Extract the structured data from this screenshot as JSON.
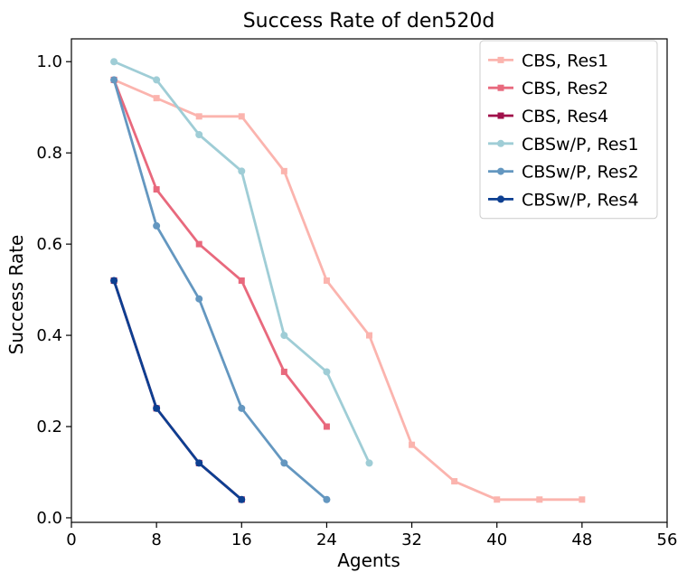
{
  "chart_data": {
    "type": "line",
    "title": "Success Rate of den520d",
    "xlabel": "Agents",
    "ylabel": "Success Rate",
    "xlim": [
      0,
      56
    ],
    "ylim": [
      -0.01,
      1.05
    ],
    "xticks": [
      0,
      8,
      16,
      24,
      32,
      40,
      48,
      56
    ],
    "xtick_labels": [
      "0",
      "8",
      "16",
      "24",
      "32",
      "40",
      "48",
      "56"
    ],
    "yticks": [
      0.0,
      0.2,
      0.4,
      0.6,
      0.8,
      1.0
    ],
    "ytick_labels": [
      "0.0",
      "0.2",
      "0.4",
      "0.6",
      "0.8",
      "1.0"
    ],
    "grid": false,
    "legend_position": "top-right",
    "series": [
      {
        "name": "CBS, Res1",
        "color": "#fbb4ae",
        "marker": "square",
        "x": [
          4,
          8,
          12,
          16,
          20,
          24,
          28,
          32,
          36,
          40,
          44,
          48
        ],
        "y": [
          0.96,
          0.92,
          0.88,
          0.88,
          0.76,
          0.52,
          0.4,
          0.16,
          0.08,
          0.04,
          0.04,
          0.04
        ]
      },
      {
        "name": "CBS, Res2",
        "color": "#e8697d",
        "marker": "square",
        "x": [
          4,
          8,
          12,
          16,
          20,
          24
        ],
        "y": [
          0.96,
          0.72,
          0.6,
          0.52,
          0.32,
          0.2
        ]
      },
      {
        "name": "CBS, Res4",
        "color": "#a0104a",
        "marker": "square",
        "x": [
          4,
          8,
          12,
          16
        ],
        "y": [
          0.52,
          0.24,
          0.12,
          0.04
        ]
      },
      {
        "name": "CBSw/P, Res1",
        "color": "#9fcdd6",
        "marker": "circle",
        "x": [
          4,
          8,
          12,
          16,
          20,
          24,
          28
        ],
        "y": [
          1.0,
          0.96,
          0.84,
          0.76,
          0.4,
          0.32,
          0.12
        ]
      },
      {
        "name": "CBSw/P, Res2",
        "color": "#6497c0",
        "marker": "circle",
        "x": [
          4,
          8,
          12,
          16,
          20,
          24
        ],
        "y": [
          0.96,
          0.64,
          0.48,
          0.24,
          0.12,
          0.04
        ]
      },
      {
        "name": "CBSw/P, Res4",
        "color": "#0d3f91",
        "marker": "circle",
        "x": [
          4,
          8,
          12,
          16
        ],
        "y": [
          0.52,
          0.24,
          0.12,
          0.04
        ]
      }
    ]
  }
}
